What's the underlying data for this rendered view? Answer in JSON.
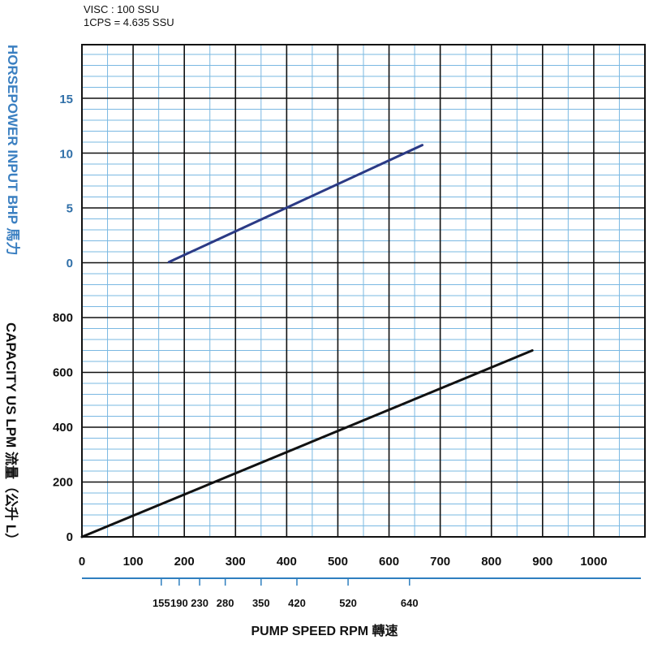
{
  "header": {
    "line1": "VISC : 100 SSU",
    "line2": "1CPS = 4.635 SSU"
  },
  "colors": {
    "grid_minor": "#7ab8e2",
    "grid_major": "#111111",
    "hp_line": "#2b3a85",
    "capacity_line": "#111111",
    "hp_text": "#3a7fc1",
    "rpm_axis": "#2f7fbf"
  },
  "chart_data": {
    "type": "line",
    "x": {
      "ticks": [
        "0",
        "100",
        "200",
        "300",
        "400",
        "500",
        "600",
        "700",
        "800",
        "900",
        "1000"
      ],
      "range": [
        0,
        1100
      ]
    },
    "y_capacity": {
      "label": "CAPACITY  US  LPM  流量（公升 L）",
      "ticks": [
        "0",
        "200",
        "400",
        "600",
        "800"
      ],
      "range": [
        0,
        800
      ]
    },
    "y_horsepower": {
      "label": "HORSEPOWER INPUT BHP 馬力",
      "ticks": [
        "0",
        "5",
        "10",
        "15"
      ],
      "range": [
        0,
        20
      ]
    },
    "rpm_axis": {
      "label": "PUMP  SPEED  RPM  轉速",
      "ticks": [
        {
          "label": "155",
          "x": 155
        },
        {
          "label": "190",
          "x": 190
        },
        {
          "label": "230",
          "x": 230
        },
        {
          "label": "280",
          "x": 280
        },
        {
          "label": "350",
          "x": 350
        },
        {
          "label": "420",
          "x": 420
        },
        {
          "label": "520",
          "x": 520
        },
        {
          "label": "640",
          "x": 640
        }
      ]
    },
    "series": [
      {
        "axis": "horsepower",
        "points": [
          [
            170,
            0.1
          ],
          [
            665,
            10.8
          ]
        ]
      },
      {
        "axis": "capacity",
        "points": [
          [
            0,
            0
          ],
          [
            880,
            680
          ]
        ]
      }
    ]
  }
}
